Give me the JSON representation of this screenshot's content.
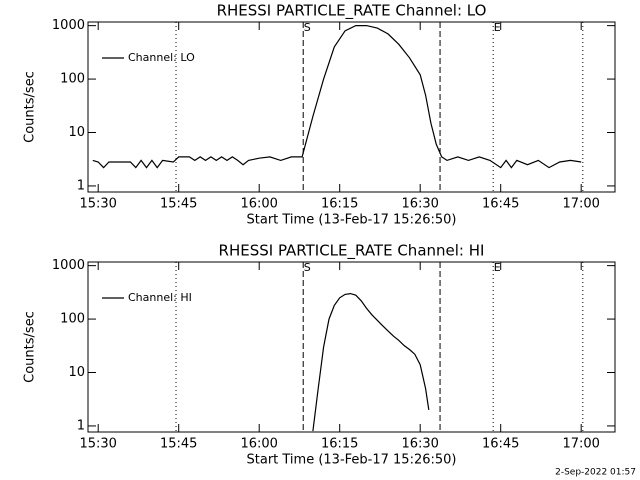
{
  "chart_data": [
    {
      "type": "line",
      "title": "RHESSI PARTICLE_RATE Channel: LO",
      "xlabel": "Start Time (13-Feb-17 15:26:50)",
      "ylabel": "Counts/sec",
      "log_y": true,
      "legend": "upper left",
      "ylim": [
        0.77,
        1170
      ],
      "yticks": [
        1,
        10,
        100,
        1000
      ],
      "xlim": [
        928.1,
        1026.3
      ],
      "xticks": [
        {
          "value": 930,
          "label": "15:30"
        },
        {
          "value": 945,
          "label": "15:45"
        },
        {
          "value": 960,
          "label": "16:00"
        },
        {
          "value": 975,
          "label": "16:15"
        },
        {
          "value": 990,
          "label": "16:30"
        },
        {
          "value": 1005,
          "label": "16:45"
        },
        {
          "value": 1020,
          "label": "17:00"
        }
      ],
      "vlines": [
        {
          "x": 944.5,
          "style": "dotted"
        },
        {
          "x": 968.2,
          "style": "dashed"
        },
        {
          "x": 993.7,
          "style": "dashed"
        },
        {
          "x": 1003.6,
          "style": "dotted"
        },
        {
          "x": 1020.3,
          "style": "dotted"
        }
      ],
      "annotations": [
        {
          "text": "S",
          "x": 968.2
        },
        {
          "text": "E",
          "x": 1003.6
        }
      ],
      "x": [
        929,
        930,
        931,
        932,
        934,
        936,
        937,
        938,
        939,
        940,
        941,
        942,
        944,
        945,
        947,
        948,
        949,
        950,
        951,
        952,
        953,
        954,
        955,
        956,
        957,
        958,
        960,
        962,
        964,
        966,
        968,
        970,
        972,
        974,
        976,
        978,
        980,
        982,
        984,
        986,
        988,
        990,
        991,
        992,
        993,
        994,
        995,
        997,
        999,
        1001,
        1003,
        1005,
        1006,
        1007,
        1008,
        1010,
        1012,
        1014,
        1016,
        1018,
        1020
      ],
      "series": [
        {
          "name": "Channel: LO",
          "color": "#000000",
          "values": [
            3,
            2.8,
            2.2,
            2.8,
            2.8,
            2.8,
            2.2,
            3,
            2.2,
            3,
            2.2,
            3,
            2.8,
            3.5,
            3.5,
            3,
            3.5,
            3,
            3.5,
            3,
            3.5,
            3,
            3.5,
            3,
            2.5,
            3,
            3.3,
            3.5,
            3,
            3.5,
            3.5,
            20,
            100,
            400,
            800,
            1000,
            1000,
            900,
            700,
            450,
            250,
            120,
            50,
            15,
            6,
            3.5,
            3,
            3.5,
            3,
            3.5,
            3,
            2.2,
            3,
            2.2,
            3,
            2.5,
            3,
            2.2,
            2.8,
            3,
            2.8
          ]
        }
      ]
    },
    {
      "type": "line",
      "title": "RHESSI PARTICLE_RATE Channel: HI",
      "xlabel": "Start Time (13-Feb-17 15:26:50)",
      "ylabel": "Counts/sec",
      "log_y": true,
      "legend": "upper left",
      "ylim": [
        0.77,
        1170
      ],
      "yticks": [
        1,
        10,
        100,
        1000
      ],
      "xlim": [
        928.1,
        1026.3
      ],
      "xticks": [
        {
          "value": 930,
          "label": "15:30"
        },
        {
          "value": 945,
          "label": "15:45"
        },
        {
          "value": 960,
          "label": "16:00"
        },
        {
          "value": 975,
          "label": "16:15"
        },
        {
          "value": 990,
          "label": "16:30"
        },
        {
          "value": 1005,
          "label": "16:45"
        },
        {
          "value": 1020,
          "label": "17:00"
        }
      ],
      "vlines": [
        {
          "x": 944.5,
          "style": "dotted"
        },
        {
          "x": 968.2,
          "style": "dashed"
        },
        {
          "x": 993.7,
          "style": "dashed"
        },
        {
          "x": 1003.6,
          "style": "dotted"
        },
        {
          "x": 1020.3,
          "style": "dotted"
        }
      ],
      "annotations": [
        {
          "text": "S",
          "x": 968.2
        },
        {
          "text": "E",
          "x": 1003.6
        }
      ],
      "x": [
        970,
        971,
        972,
        973,
        974,
        975,
        976,
        977,
        978,
        979,
        980,
        981,
        982,
        983,
        984,
        985,
        986,
        987,
        988,
        989,
        990,
        991,
        991.6
      ],
      "series": [
        {
          "name": "Channel: HI",
          "color": "#000000",
          "values": [
            0.8,
            5,
            30,
            100,
            180,
            250,
            290,
            300,
            280,
            220,
            160,
            120,
            95,
            75,
            60,
            48,
            40,
            32,
            27,
            22,
            14,
            5,
            2
          ]
        }
      ]
    }
  ],
  "footer": "2-Sep-2022 01:57"
}
